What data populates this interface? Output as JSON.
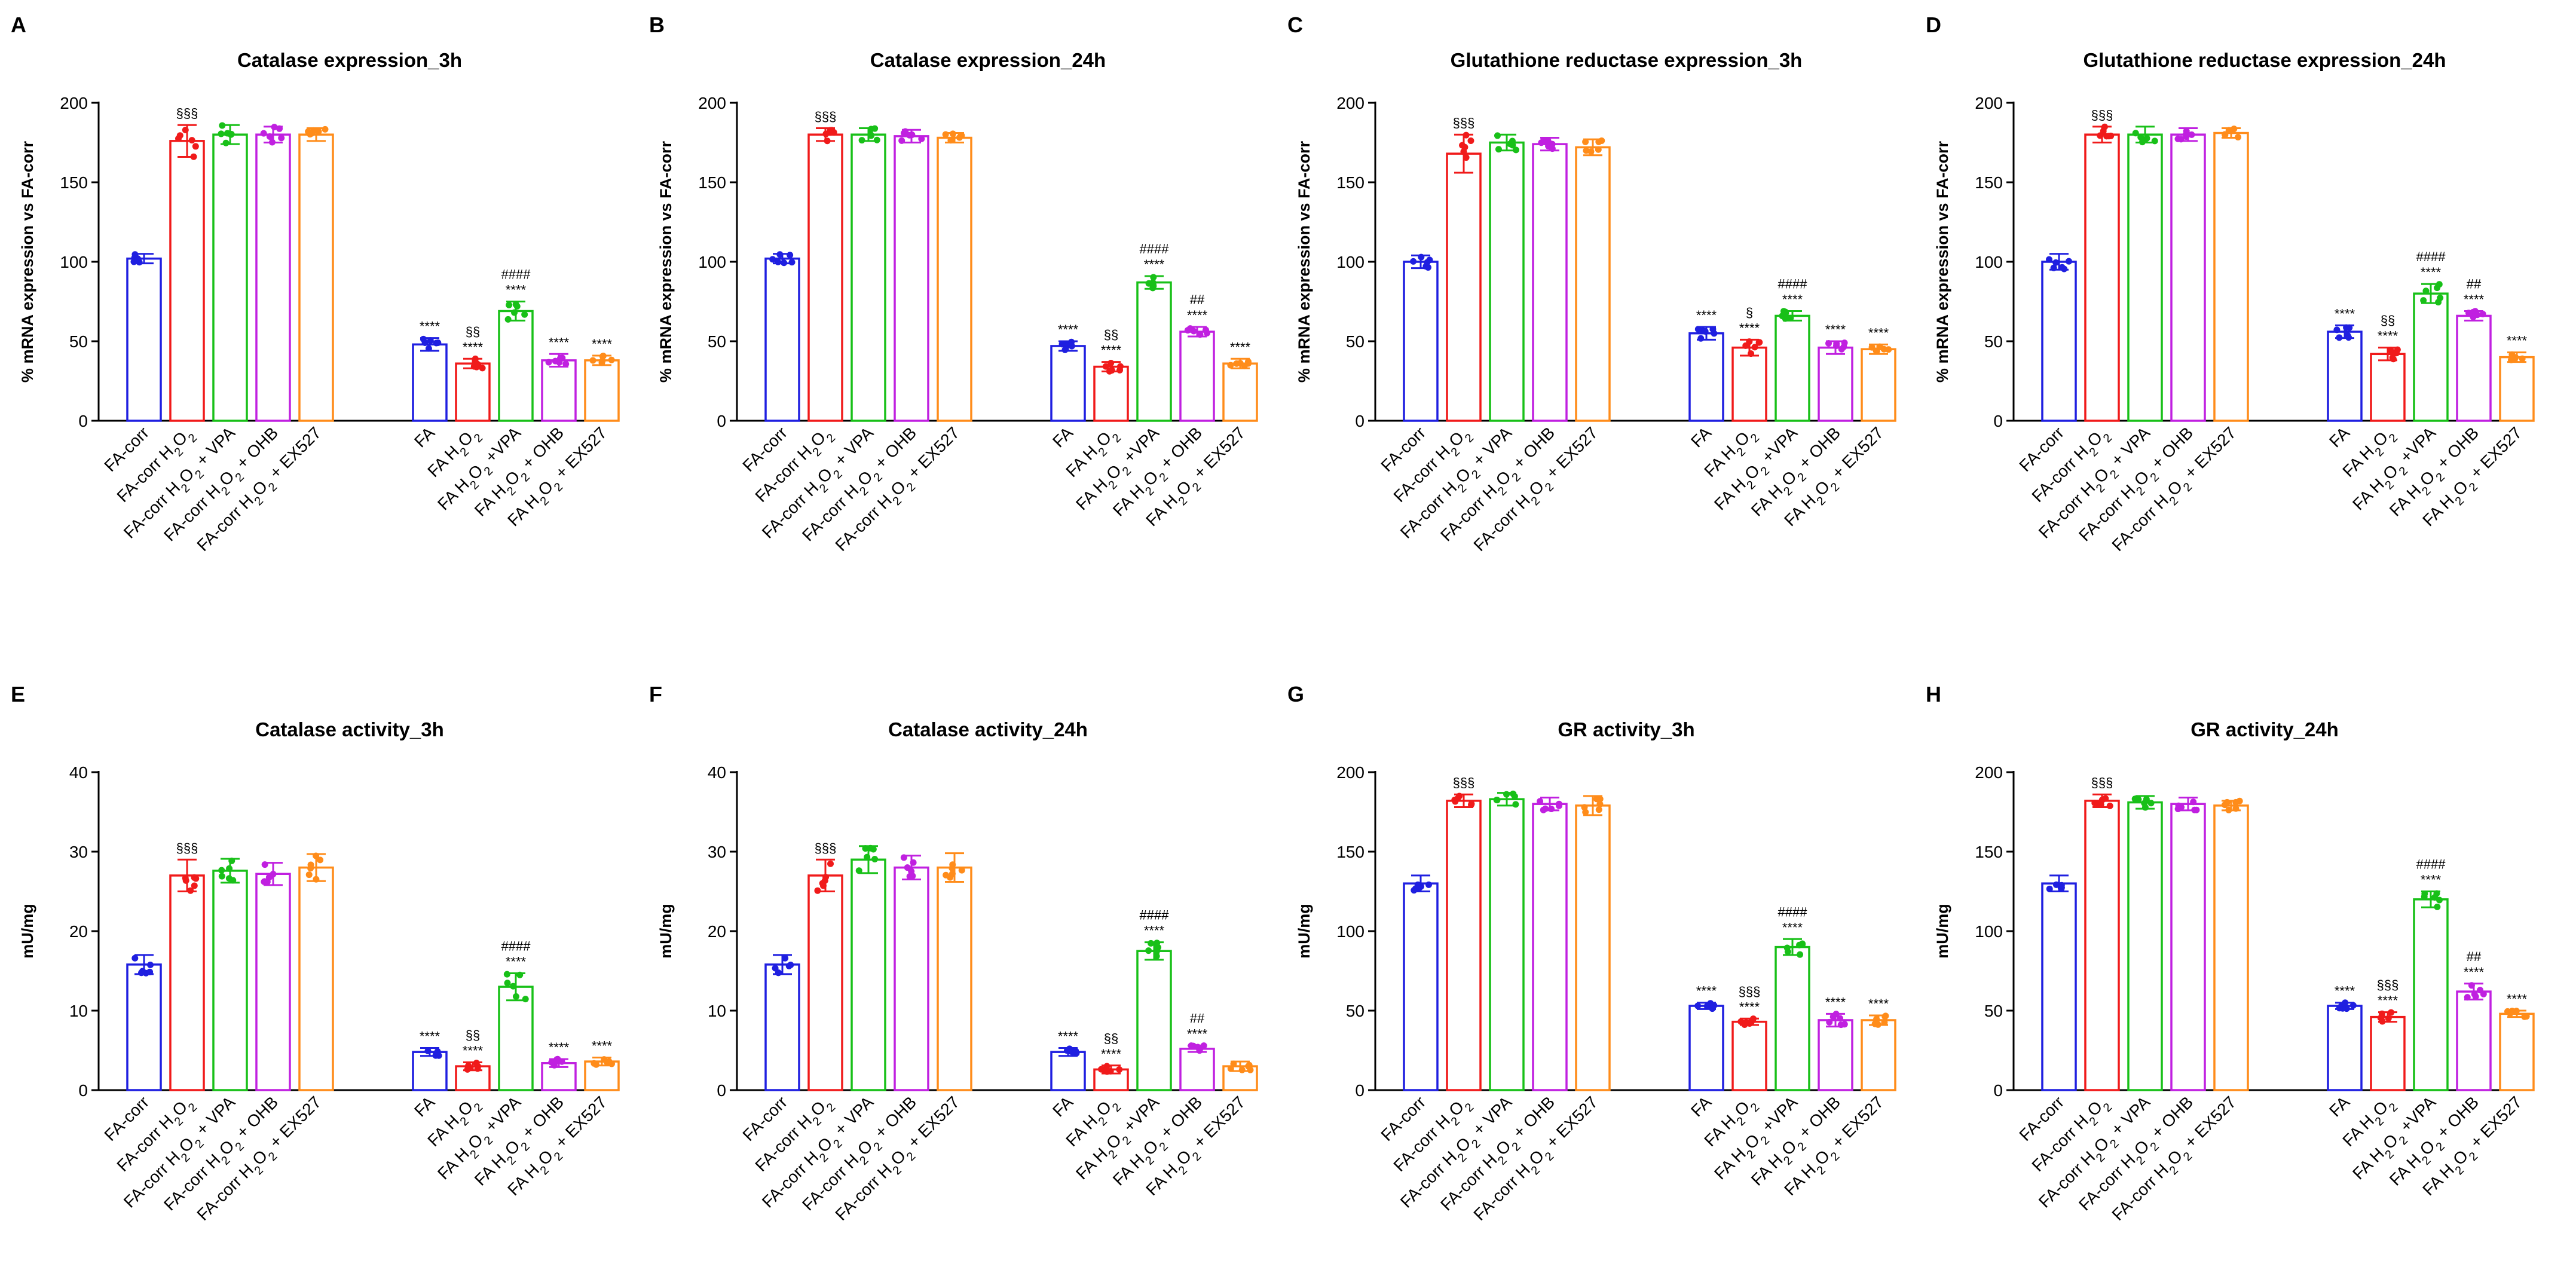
{
  "figure": {
    "colors": [
      "#1f1fe0",
      "#f01a1a",
      "#18c018",
      "#c020e0",
      "#ff8c1a"
    ],
    "ylabel_expression": "% mRNA expression vs FA-corr",
    "ylabel_activity": "mU/mg"
  },
  "chart_data": [
    {
      "letter": "A",
      "type": "bar",
      "title": "Catalase expression_3h",
      "ylabel": "% mRNA expression vs FA-corr",
      "ylim": [
        0,
        200
      ],
      "yticks": [
        0,
        50,
        100,
        150,
        200
      ],
      "categories": [
        "FA-corr",
        "FA-corr H₂O₂",
        "FA-corr H₂O₂ + VPA",
        "FA-corr H₂O₂ + OHB",
        "FA-corr H₂O₂ + EX527",
        "FA",
        "FA H₂O₂",
        "FA H₂O₂ +VPA",
        "FA H₂O₂ + OHB",
        "FA H₂O₂ + EX527"
      ],
      "values": [
        102,
        176,
        180,
        180,
        180,
        48,
        36,
        69,
        38,
        38
      ],
      "errors": [
        3,
        10,
        6,
        5,
        4,
        4,
        3,
        6,
        4,
        3
      ],
      "annotations": [
        {
          "bar": 1,
          "lines": [
            "§§§"
          ]
        },
        {
          "bar": 5,
          "lines": [
            "****"
          ]
        },
        {
          "bar": 6,
          "lines": [
            "§§",
            "****"
          ]
        },
        {
          "bar": 7,
          "lines": [
            "####",
            "****"
          ]
        },
        {
          "bar": 8,
          "lines": [
            "****"
          ]
        },
        {
          "bar": 9,
          "lines": [
            "****"
          ]
        }
      ]
    },
    {
      "letter": "B",
      "type": "bar",
      "title": "Catalase expression_24h",
      "ylabel": "% mRNA expression vs FA-corr",
      "ylim": [
        0,
        200
      ],
      "yticks": [
        0,
        50,
        100,
        150,
        200
      ],
      "categories": [
        "FA-corr",
        "FA-corr H₂O₂",
        "FA-corr H₂O₂ + VPA",
        "FA-corr H₂O₂ + OHB",
        "FA-corr H₂O₂ + EX527",
        "FA",
        "FA H₂O₂",
        "FA H₂O₂ +VPA",
        "FA H₂O₂ + OHB",
        "FA H₂O₂ + EX527"
      ],
      "values": [
        102,
        180,
        180,
        179,
        178,
        47,
        34,
        87,
        56,
        36
      ],
      "errors": [
        3,
        4,
        4,
        4,
        3,
        3,
        3,
        4,
        3,
        3
      ],
      "annotations": [
        {
          "bar": 1,
          "lines": [
            "§§§"
          ]
        },
        {
          "bar": 5,
          "lines": [
            "****"
          ]
        },
        {
          "bar": 6,
          "lines": [
            "§§",
            "****"
          ]
        },
        {
          "bar": 7,
          "lines": [
            "####",
            "****"
          ]
        },
        {
          "bar": 8,
          "lines": [
            "##",
            "****"
          ]
        },
        {
          "bar": 9,
          "lines": [
            "****"
          ]
        }
      ]
    },
    {
      "letter": "C",
      "type": "bar",
      "title": "Glutathione reductase  expression_3h",
      "ylabel": "% mRNA expression vs FA-corr",
      "ylim": [
        0,
        200
      ],
      "yticks": [
        0,
        50,
        100,
        150,
        200
      ],
      "categories": [
        "FA-corr",
        "FA-corr H₂O₂",
        "FA-corr H₂O₂ + VPA",
        "FA-corr H₂O₂ + OHB",
        "FA-corr H₂O₂ + EX527",
        "FA",
        "FA H₂O₂",
        "FA H₂O₂ +VPA",
        "FA H₂O₂ + OHB",
        "FA H₂O₂ + EX527"
      ],
      "values": [
        100,
        168,
        175,
        174,
        172,
        55,
        46,
        66,
        46,
        45
      ],
      "errors": [
        4,
        12,
        5,
        4,
        5,
        4,
        5,
        3,
        4,
        3
      ],
      "annotations": [
        {
          "bar": 1,
          "lines": [
            "§§§"
          ]
        },
        {
          "bar": 5,
          "lines": [
            "****"
          ]
        },
        {
          "bar": 6,
          "lines": [
            "§",
            "****"
          ]
        },
        {
          "bar": 7,
          "lines": [
            "####",
            "****"
          ]
        },
        {
          "bar": 8,
          "lines": [
            "****"
          ]
        },
        {
          "bar": 9,
          "lines": [
            "****"
          ]
        }
      ]
    },
    {
      "letter": "D",
      "type": "bar",
      "title": "Glutathione reductase  expression_24h",
      "ylabel": "% mRNA expression vs FA-corr",
      "ylim": [
        0,
        200
      ],
      "yticks": [
        0,
        50,
        100,
        150,
        200
      ],
      "categories": [
        "FA-corr",
        "FA-corr H₂O₂",
        "FA-corr H₂O₂ + VPA",
        "FA-corr H₂O₂ + OHB",
        "FA-corr H₂O₂ + EX527",
        "FA",
        "FA H₂O₂",
        "FA H₂O₂ +VPA",
        "FA H₂O₂ + OHB",
        "FA H₂O₂ + EX527"
      ],
      "values": [
        100,
        180,
        180,
        180,
        181,
        56,
        42,
        80,
        66,
        40
      ],
      "errors": [
        5,
        5,
        5,
        4,
        3,
        4,
        4,
        6,
        3,
        3
      ],
      "annotations": [
        {
          "bar": 1,
          "lines": [
            "§§§"
          ]
        },
        {
          "bar": 5,
          "lines": [
            "****"
          ]
        },
        {
          "bar": 6,
          "lines": [
            "§§",
            "****"
          ]
        },
        {
          "bar": 7,
          "lines": [
            "####",
            "****"
          ]
        },
        {
          "bar": 8,
          "lines": [
            "##",
            "****"
          ]
        },
        {
          "bar": 9,
          "lines": [
            "****"
          ]
        }
      ]
    },
    {
      "letter": "E",
      "type": "bar",
      "title": "Catalase activity_3h",
      "ylabel": "mU/mg",
      "ylim": [
        0,
        40
      ],
      "yticks": [
        0,
        10,
        20,
        30,
        40
      ],
      "categories": [
        "FA-corr",
        "FA-corr H₂O₂",
        "FA-corr H₂O₂ + VPA",
        "FA-corr H₂O₂ + OHB",
        "FA-corr H₂O₂ + EX527",
        "FA",
        "FA H₂O₂",
        "FA H₂O₂ +VPA",
        "FA H₂O₂ + OHB",
        "FA H₂O₂ + EX527"
      ],
      "values": [
        15.8,
        27,
        27.6,
        27.2,
        28,
        4.8,
        3,
        13,
        3.4,
        3.6
      ],
      "errors": [
        1.2,
        2,
        1.5,
        1.4,
        1.7,
        0.5,
        0.5,
        1.7,
        0.5,
        0.5
      ],
      "annotations": [
        {
          "bar": 1,
          "lines": [
            "§§§"
          ]
        },
        {
          "bar": 5,
          "lines": [
            "****"
          ]
        },
        {
          "bar": 6,
          "lines": [
            "§§",
            "****"
          ]
        },
        {
          "bar": 7,
          "lines": [
            "####",
            "****"
          ]
        },
        {
          "bar": 8,
          "lines": [
            "****"
          ]
        },
        {
          "bar": 9,
          "lines": [
            "****"
          ]
        }
      ]
    },
    {
      "letter": "F",
      "type": "bar",
      "title": "Catalase activity_24h",
      "ylabel": "mU/mg",
      "ylim": [
        0,
        40
      ],
      "yticks": [
        0,
        10,
        20,
        30,
        40
      ],
      "categories": [
        "FA-corr",
        "FA-corr H₂O₂",
        "FA-corr H₂O₂ + VPA",
        "FA-corr H₂O₂ + OHB",
        "FA-corr H₂O₂ + EX527",
        "FA",
        "FA H₂O₂",
        "FA H₂O₂ +VPA",
        "FA H₂O₂ + OHB",
        "FA H₂O₂ + EX527"
      ],
      "values": [
        15.8,
        27,
        29,
        28,
        28,
        4.8,
        2.6,
        17.5,
        5.2,
        3
      ],
      "errors": [
        1.2,
        2,
        1.7,
        1.5,
        1.8,
        0.5,
        0.5,
        1.1,
        0.4,
        0.6
      ],
      "annotations": [
        {
          "bar": 1,
          "lines": [
            "§§§"
          ]
        },
        {
          "bar": 5,
          "lines": [
            "****"
          ]
        },
        {
          "bar": 6,
          "lines": [
            "§§",
            "****"
          ]
        },
        {
          "bar": 7,
          "lines": [
            "####",
            "****"
          ]
        },
        {
          "bar": 8,
          "lines": [
            "##",
            "****"
          ]
        }
      ]
    },
    {
      "letter": "G",
      "type": "bar",
      "title": "GR activity_3h",
      "ylabel": "mU/mg",
      "ylim": [
        0,
        200
      ],
      "yticks": [
        0,
        50,
        100,
        150,
        200
      ],
      "categories": [
        "FA-corr",
        "FA-corr H₂O₂",
        "FA-corr H₂O₂ + VPA",
        "FA-corr H₂O₂ + OHB",
        "FA-corr H₂O₂ + EX527",
        "FA",
        "FA H₂O₂",
        "FA H₂O₂ +VPA",
        "FA H₂O₂ + OHB",
        "FA H₂O₂ + EX527"
      ],
      "values": [
        130,
        182,
        183,
        180,
        179,
        53,
        43,
        90,
        44,
        44
      ],
      "errors": [
        5,
        4,
        4,
        4,
        6,
        2,
        2,
        5,
        4,
        3
      ],
      "annotations": [
        {
          "bar": 1,
          "lines": [
            "§§§"
          ]
        },
        {
          "bar": 5,
          "lines": [
            "****"
          ]
        },
        {
          "bar": 6,
          "lines": [
            "§§§",
            "****"
          ]
        },
        {
          "bar": 7,
          "lines": [
            "####",
            "****"
          ]
        },
        {
          "bar": 8,
          "lines": [
            "****"
          ]
        },
        {
          "bar": 9,
          "lines": [
            "****"
          ]
        }
      ]
    },
    {
      "letter": "H",
      "type": "bar",
      "title": "GR activity_24h",
      "ylabel": "mU/mg",
      "ylim": [
        0,
        200
      ],
      "yticks": [
        0,
        50,
        100,
        150,
        200
      ],
      "categories": [
        "FA-corr",
        "FA-corr H₂O₂",
        "FA-corr H₂O₂ + VPA",
        "FA-corr H₂O₂ + OHB",
        "FA-corr H₂O₂ + EX527",
        "FA",
        "FA H₂O₂",
        "FA H₂O₂ +VPA",
        "FA H₂O₂ + OHB",
        "FA H₂O₂ + EX527"
      ],
      "values": [
        130,
        182,
        181,
        180,
        179,
        53,
        46,
        120,
        62,
        48
      ],
      "errors": [
        5,
        4,
        4,
        4,
        3,
        2,
        3,
        5,
        5,
        2
      ],
      "annotations": [
        {
          "bar": 1,
          "lines": [
            "§§§"
          ]
        },
        {
          "bar": 5,
          "lines": [
            "****"
          ]
        },
        {
          "bar": 6,
          "lines": [
            "§§§",
            "****"
          ]
        },
        {
          "bar": 7,
          "lines": [
            "####",
            "****"
          ]
        },
        {
          "bar": 8,
          "lines": [
            "##",
            "****"
          ]
        },
        {
          "bar": 9,
          "lines": [
            "****"
          ]
        }
      ]
    }
  ]
}
